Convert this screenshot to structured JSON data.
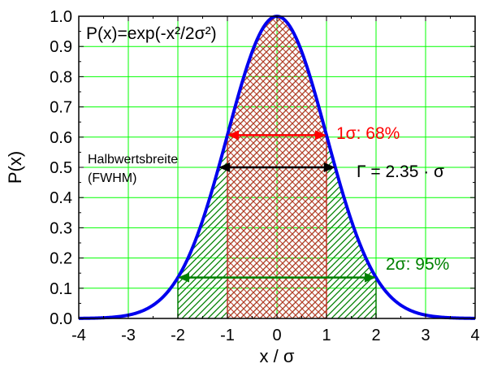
{
  "chart_data": {
    "type": "area",
    "title": "P(x)=exp(-x²/2σ²)",
    "xlabel": "x / σ",
    "ylabel": "P(x)",
    "xlim": [
      -4,
      4
    ],
    "ylim": [
      0,
      1.0
    ],
    "x_ticks": [
      "-4",
      "-3",
      "-2",
      "-1",
      "0",
      "1",
      "2",
      "3",
      "4"
    ],
    "y_ticks": [
      "0.0",
      "0.1",
      "0.2",
      "0.3",
      "0.4",
      "0.5",
      "0.6",
      "0.7",
      "0.8",
      "0.9",
      "1.0"
    ],
    "grid": true,
    "series": [
      {
        "function": "exp(-x^2/2)",
        "color": "#0000ee"
      }
    ],
    "shaded_regions": [
      {
        "x_range": [
          -2,
          2
        ],
        "color": "#008000",
        "pattern": "diagonal hatch"
      },
      {
        "x_range": [
          -1,
          1
        ],
        "color": "#c0392b",
        "pattern": "crosshatch"
      }
    ],
    "annotations": [
      {
        "text": "1σ: 68%",
        "color": "#ff0000",
        "arrow_y": 0.6065,
        "arrow_x": [
          -1,
          1
        ]
      },
      {
        "text": "Γ = 2.35 · σ",
        "color": "#000000",
        "arrow_y": 0.5,
        "arrow_x": [
          -1.1774,
          1.1774
        ]
      },
      {
        "text": "Halbwertsbreite",
        "color": "#000000"
      },
      {
        "text": "(FWHM)",
        "color": "#000000"
      },
      {
        "text": "2σ: 95%",
        "color": "#008000",
        "arrow_y": 0.1353,
        "arrow_x": [
          -2,
          2
        ]
      }
    ]
  },
  "colors": {
    "grid": "#00ff00",
    "curve": "#0000ee",
    "red_region": "#c0392b",
    "green_region": "#008000",
    "red_arrow": "#ff0000",
    "black_arrow": "#000000",
    "green_arrow": "#008000"
  }
}
